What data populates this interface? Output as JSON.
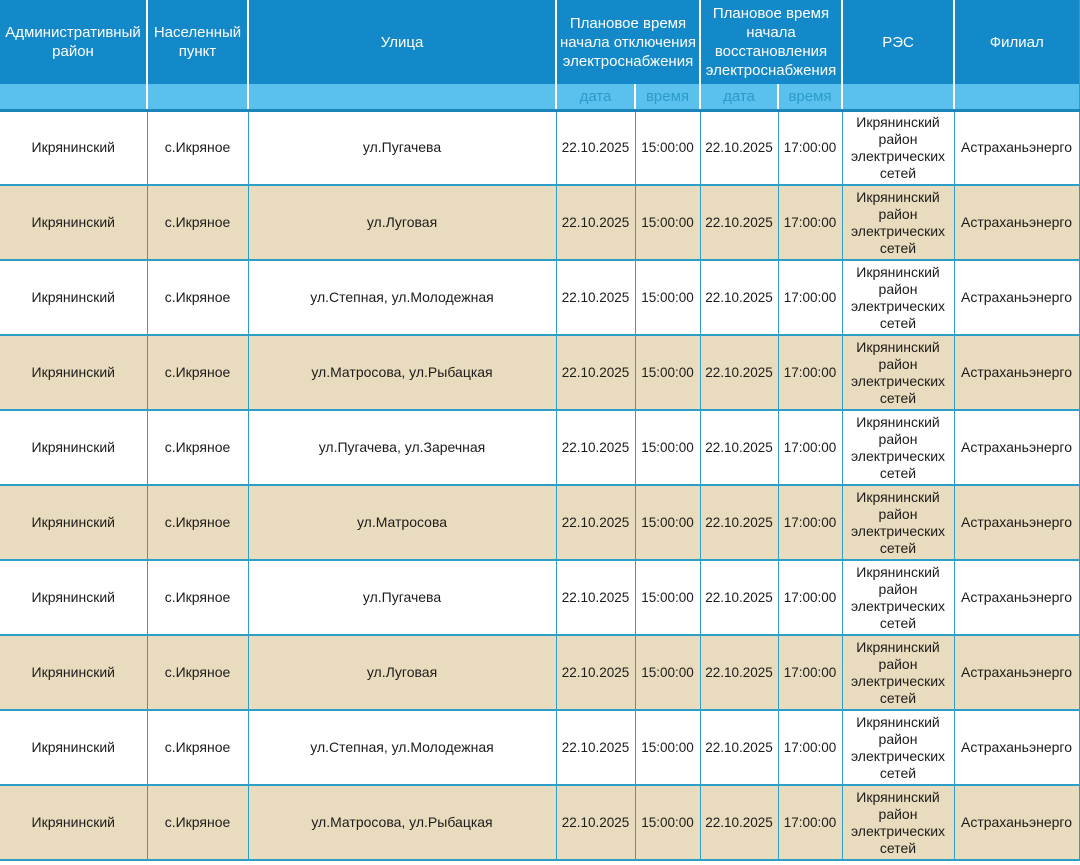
{
  "table": {
    "headers": {
      "district": "Административный район",
      "settlement": "Населенный пункт",
      "street": "Улица",
      "outage_group": "Плановое время начала отключения электроснабжения",
      "restore_group": "Плановое время начала восстановления электроснабжения",
      "res": "РЭС",
      "branch": "Филиал",
      "outage_date_label": "дата",
      "outage_time_label": "время",
      "restore_date_label": "дата",
      "restore_time_label": "время"
    },
    "rows": [
      {
        "district": "Икрянинский",
        "settlement": "с.Икряное",
        "street": "ул.Пугачева",
        "off_date": "22.10.2025",
        "off_time": "15:00:00",
        "on_date": "22.10.2025",
        "on_time": "17:00:00",
        "res": "Икрянинский район электрических сетей",
        "branch": "Астраханьэнерго"
      },
      {
        "district": "Икрянинский",
        "settlement": "с.Икряное",
        "street": "ул.Луговая",
        "off_date": "22.10.2025",
        "off_time": "15:00:00",
        "on_date": "22.10.2025",
        "on_time": "17:00:00",
        "res": "Икрянинский район электрических сетей",
        "branch": "Астраханьэнерго"
      },
      {
        "district": "Икрянинский",
        "settlement": "с.Икряное",
        "street": "ул.Степная, ул.Молодежная",
        "off_date": "22.10.2025",
        "off_time": "15:00:00",
        "on_date": "22.10.2025",
        "on_time": "17:00:00",
        "res": "Икрянинский район электрических сетей",
        "branch": "Астраханьэнерго"
      },
      {
        "district": "Икрянинский",
        "settlement": "с.Икряное",
        "street": "ул.Матросова, ул.Рыбацкая",
        "off_date": "22.10.2025",
        "off_time": "15:00:00",
        "on_date": "22.10.2025",
        "on_time": "17:00:00",
        "res": "Икрянинский район электрических сетей",
        "branch": "Астраханьэнерго"
      },
      {
        "district": "Икрянинский",
        "settlement": "с.Икряное",
        "street": "ул.Пугачева, ул.Заречная",
        "off_date": "22.10.2025",
        "off_time": "15:00:00",
        "on_date": "22.10.2025",
        "on_time": "17:00:00",
        "res": "Икрянинский район электрических сетей",
        "branch": "Астраханьэнерго"
      },
      {
        "district": "Икрянинский",
        "settlement": "с.Икряное",
        "street": "ул.Матросова",
        "off_date": "22.10.2025",
        "off_time": "15:00:00",
        "on_date": "22.10.2025",
        "on_time": "17:00:00",
        "res": "Икрянинский район электрических сетей",
        "branch": "Астраханьэнерго"
      },
      {
        "district": "Икрянинский",
        "settlement": "с.Икряное",
        "street": "ул.Пугачева",
        "off_date": "22.10.2025",
        "off_time": "15:00:00",
        "on_date": "22.10.2025",
        "on_time": "17:00:00",
        "res": "Икрянинский район электрических сетей",
        "branch": "Астраханьэнерго"
      },
      {
        "district": "Икрянинский",
        "settlement": "с.Икряное",
        "street": "ул.Луговая",
        "off_date": "22.10.2025",
        "off_time": "15:00:00",
        "on_date": "22.10.2025",
        "on_time": "17:00:00",
        "res": "Икрянинский район электрических сетей",
        "branch": "Астраханьэнерго"
      },
      {
        "district": "Икрянинский",
        "settlement": "с.Икряное",
        "street": "ул.Степная, ул.Молодежная",
        "off_date": "22.10.2025",
        "off_time": "15:00:00",
        "on_date": "22.10.2025",
        "on_time": "17:00:00",
        "res": "Икрянинский район электрических сетей",
        "branch": "Астраханьэнерго"
      },
      {
        "district": "Икрянинский",
        "settlement": "с.Икряное",
        "street": "ул.Матросова, ул.Рыбацкая",
        "off_date": "22.10.2025",
        "off_time": "15:00:00",
        "on_date": "22.10.2025",
        "on_time": "17:00:00",
        "res": "Икрянинский район электрических сетей",
        "branch": "Астраханьэнерго"
      }
    ]
  },
  "colors": {
    "header_bg": "#1389ca",
    "subheader_bg": "#5ac1ee",
    "subheader_text": "#2b9aca",
    "row_alt_bg": "#e9dbbd",
    "cell_border": "#2d9fc7",
    "header_text": "#ffffff",
    "body_text": "#1c1c1c"
  }
}
